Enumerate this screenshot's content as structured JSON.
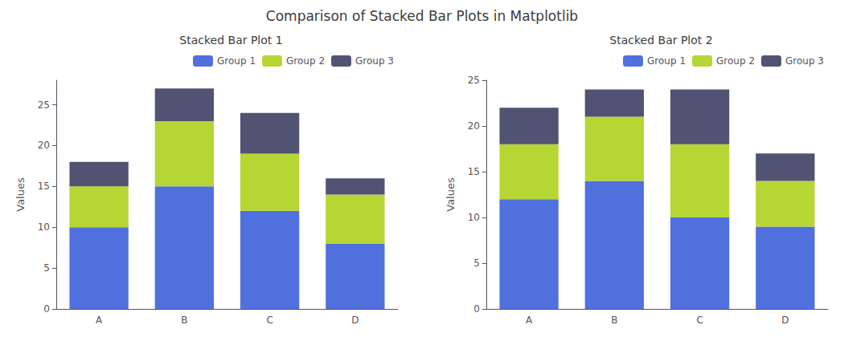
{
  "title": "Comparison of Stacked Bar Plots in Matplotlib",
  "chart_data": [
    {
      "type": "bar",
      "title": "Stacked Bar Plot 1",
      "ylabel": "Values",
      "categories": [
        "A",
        "B",
        "C",
        "D"
      ],
      "series": [
        {
          "name": "Group 1",
          "values": [
            10,
            15,
            12,
            8
          ]
        },
        {
          "name": "Group 2",
          "values": [
            5,
            8,
            7,
            6
          ]
        },
        {
          "name": "Group 3",
          "values": [
            3,
            4,
            5,
            2
          ]
        }
      ],
      "stacked": true,
      "ylim": [
        0,
        28
      ],
      "yticks": [
        0,
        5,
        10,
        15,
        20,
        25
      ],
      "grid": false,
      "legend": "upper right"
    },
    {
      "type": "bar",
      "title": "Stacked Bar Plot 2",
      "ylabel": "Values",
      "categories": [
        "A",
        "B",
        "C",
        "D"
      ],
      "series": [
        {
          "name": "Group 1",
          "values": [
            12,
            14,
            10,
            9
          ]
        },
        {
          "name": "Group 2",
          "values": [
            6,
            7,
            8,
            5
          ]
        },
        {
          "name": "Group 3",
          "values": [
            4,
            3,
            6,
            3
          ]
        }
      ],
      "stacked": true,
      "ylim": [
        0,
        25
      ],
      "yticks": [
        0,
        5,
        10,
        15,
        20,
        25
      ],
      "grid": false,
      "legend": "upper right"
    }
  ]
}
